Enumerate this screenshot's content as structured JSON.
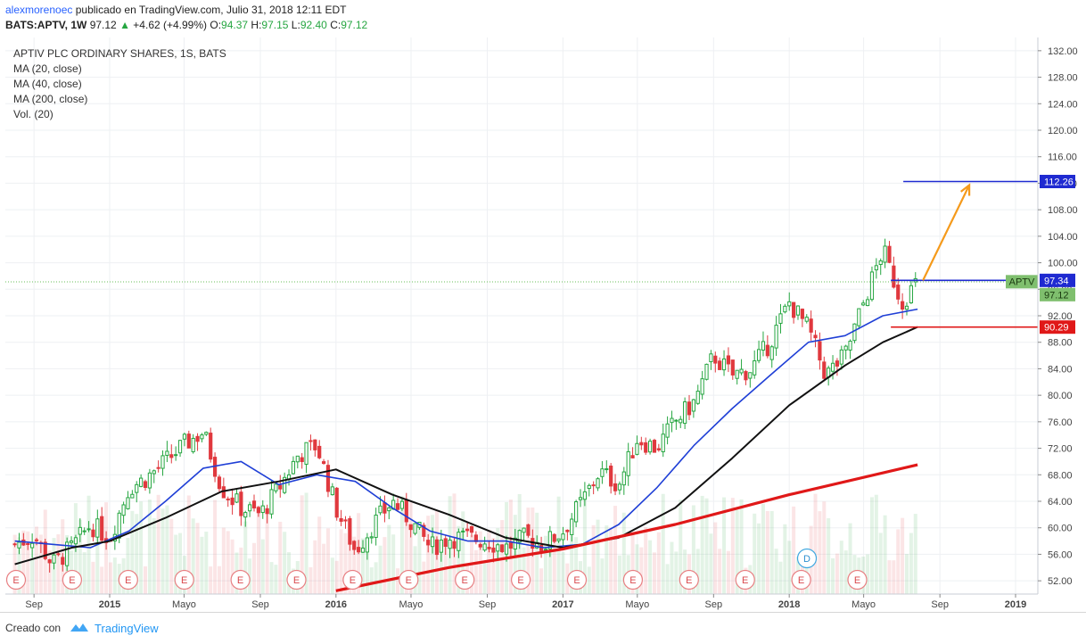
{
  "header": {
    "user": "alexmorenoec",
    "published": "publicado en TradingView.com, Julio 31, 2018 12:11 EDT",
    "symbol": "BATS:APTV, 1W",
    "last": "97.12",
    "change": "+4.62 (+4.99%)",
    "o_label": "O:",
    "o_val": "94.37",
    "h_label": "H:",
    "h_val": "97.15",
    "l_label": "L:",
    "l_val": "92.40",
    "c_label": "C:",
    "c_val": "97.12"
  },
  "legend": {
    "title": "APTIV PLC ORDINARY SHARES, 1S, BATS",
    "ma20": "MA (20, close)",
    "ma40": "MA (40, close)",
    "ma200": "MA (200, close)",
    "vol": "Vol. (20)"
  },
  "footer": {
    "created": "Creado con",
    "brand": "TradingView"
  },
  "colors": {
    "up": "#26a641",
    "down": "#e0393e",
    "ma20": "#1f3fd6",
    "ma40": "#111111",
    "ma200": "#e01818",
    "arrow": "#f59a1b",
    "target": "#1f2ad1",
    "support": "#e01818",
    "last_tag": "#7fbf6e",
    "grid": "#eef0f3"
  },
  "chart_data": {
    "type": "candlestick",
    "title": "APTIV PLC ORDINARY SHARES, 1S, BATS",
    "x_axis": {
      "ticks": [
        "Sep",
        "2015",
        "Mayo",
        "Sep",
        "2016",
        "Mayo",
        "Sep",
        "2017",
        "Mayo",
        "Sep",
        "2018",
        "Mayo",
        "Sep",
        "2019"
      ],
      "tick_dates": [
        "2014-09",
        "2015-01",
        "2015-05",
        "2015-09",
        "2016-01",
        "2016-05",
        "2016-09",
        "2017-01",
        "2017-05",
        "2017-09",
        "2018-01",
        "2018-05",
        "2018-09",
        "2019-01"
      ]
    },
    "y_axis": {
      "ylim": [
        50,
        134
      ],
      "ticks": [
        "52.00",
        "56.00",
        "60.00",
        "64.00",
        "68.00",
        "72.00",
        "76.00",
        "80.00",
        "84.00",
        "88.00",
        "92.00",
        "96.00",
        "100.00",
        "104.00",
        "108.00",
        "112.00",
        "116.00",
        "120.00",
        "124.00",
        "128.00",
        "132.00"
      ],
      "scale": "linear",
      "position": "right"
    },
    "grid": true,
    "close_path": [
      [
        "2014-08",
        57.5
      ],
      [
        "2014-09",
        58.8
      ],
      [
        "2014-10",
        54.5
      ],
      [
        "2014-11",
        57.0
      ],
      [
        "2014-12",
        60.5
      ],
      [
        "2015-01",
        58.5
      ],
      [
        "2015-02",
        66.0
      ],
      [
        "2015-03",
        67.5
      ],
      [
        "2015-04",
        70.0
      ],
      [
        "2015-05",
        72.5
      ],
      [
        "2015-06",
        74.5
      ],
      [
        "2015-07",
        66.0
      ],
      [
        "2015-08",
        63.0
      ],
      [
        "2015-09",
        62.0
      ],
      [
        "2015-10",
        66.0
      ],
      [
        "2015-11",
        71.0
      ],
      [
        "2015-12",
        72.5
      ],
      [
        "2016-01",
        63.0
      ],
      [
        "2016-02",
        56.5
      ],
      [
        "2016-03",
        60.5
      ],
      [
        "2016-04",
        64.0
      ],
      [
        "2016-05",
        61.0
      ],
      [
        "2016-06",
        57.0
      ],
      [
        "2016-07",
        58.5
      ],
      [
        "2016-08",
        58.5
      ],
      [
        "2016-09",
        58.0
      ],
      [
        "2016-10",
        57.0
      ],
      [
        "2016-11",
        58.5
      ],
      [
        "2016-12",
        57.5
      ],
      [
        "2017-01",
        59.5
      ],
      [
        "2017-02",
        64.0
      ],
      [
        "2017-03",
        68.5
      ],
      [
        "2017-04",
        66.5
      ],
      [
        "2017-05",
        73.5
      ],
      [
        "2017-06",
        72.0
      ],
      [
        "2017-07",
        76.0
      ],
      [
        "2017-08",
        79.0
      ],
      [
        "2017-09",
        86.0
      ],
      [
        "2017-10",
        83.0
      ],
      [
        "2017-11",
        84.0
      ],
      [
        "2017-12",
        88.0
      ],
      [
        "2018-01",
        94.0
      ],
      [
        "2018-02",
        90.0
      ],
      [
        "2018-03",
        83.0
      ],
      [
        "2018-04",
        86.0
      ],
      [
        "2018-05",
        94.0
      ],
      [
        "2018-06",
        102.0
      ],
      [
        "2018-07",
        94.0
      ],
      [
        "2018-07-27",
        97.12
      ]
    ],
    "series": [
      {
        "name": "MA (20, close)",
        "color": "#1f3fd6",
        "points": [
          [
            "2014-08",
            58.0
          ],
          [
            "2014-10",
            57.5
          ],
          [
            "2014-12",
            57.0
          ],
          [
            "2015-02",
            59.5
          ],
          [
            "2015-04",
            64.0
          ],
          [
            "2015-06",
            69.0
          ],
          [
            "2015-08",
            70.0
          ],
          [
            "2015-10",
            66.5
          ],
          [
            "2015-12",
            68.0
          ],
          [
            "2016-02",
            67.0
          ],
          [
            "2016-04",
            63.0
          ],
          [
            "2016-06",
            59.5
          ],
          [
            "2016-08",
            58.0
          ],
          [
            "2016-10",
            58.0
          ],
          [
            "2016-12",
            57.0
          ],
          [
            "2017-02",
            57.5
          ],
          [
            "2017-04",
            60.5
          ],
          [
            "2017-06",
            66.0
          ],
          [
            "2017-08",
            72.5
          ],
          [
            "2017-10",
            78.0
          ],
          [
            "2017-12",
            83.0
          ],
          [
            "2018-02",
            88.0
          ],
          [
            "2018-04",
            89.0
          ],
          [
            "2018-06",
            92.0
          ],
          [
            "2018-07-27",
            93.0
          ]
        ]
      },
      {
        "name": "MA (40, close)",
        "color": "#111111",
        "points": [
          [
            "2014-08",
            54.5
          ],
          [
            "2014-11",
            57.0
          ],
          [
            "2015-01",
            58.0
          ],
          [
            "2015-04",
            61.5
          ],
          [
            "2015-07",
            65.5
          ],
          [
            "2015-10",
            67.0
          ],
          [
            "2016-01",
            68.8
          ],
          [
            "2016-04",
            65.0
          ],
          [
            "2016-07",
            62.0
          ],
          [
            "2016-10",
            58.5
          ],
          [
            "2017-01",
            57.0
          ],
          [
            "2017-04",
            58.5
          ],
          [
            "2017-07",
            63.0
          ],
          [
            "2017-10",
            70.5
          ],
          [
            "2018-01",
            78.5
          ],
          [
            "2018-04",
            84.5
          ],
          [
            "2018-06",
            88.0
          ],
          [
            "2018-07-27",
            90.3
          ]
        ]
      },
      {
        "name": "MA (200, close)",
        "color": "#e01818",
        "points": [
          [
            "2016-01",
            50.5
          ],
          [
            "2016-07",
            54.0
          ],
          [
            "2017-01",
            56.8
          ],
          [
            "2017-07",
            60.5
          ],
          [
            "2018-01",
            65.0
          ],
          [
            "2018-07-27",
            69.5
          ]
        ]
      }
    ],
    "volume": {
      "label": "Vol. (20)",
      "visible": true
    },
    "earnings_markers": [
      "E",
      "E",
      "E",
      "E",
      "E",
      "E",
      "E",
      "E",
      "E",
      "E",
      "E",
      "E",
      "E",
      "E",
      "E",
      "E"
    ],
    "dividend_marker": "D",
    "annotations": {
      "target_price": "112.26",
      "ticker_tag": "APTV",
      "level_1": "97.34",
      "last_price": "97.12",
      "support": "90.29",
      "projection": {
        "from": [
          "2018-07-27",
          97.34
        ],
        "to": [
          "2018-10-27",
          112.26
        ]
      }
    }
  }
}
